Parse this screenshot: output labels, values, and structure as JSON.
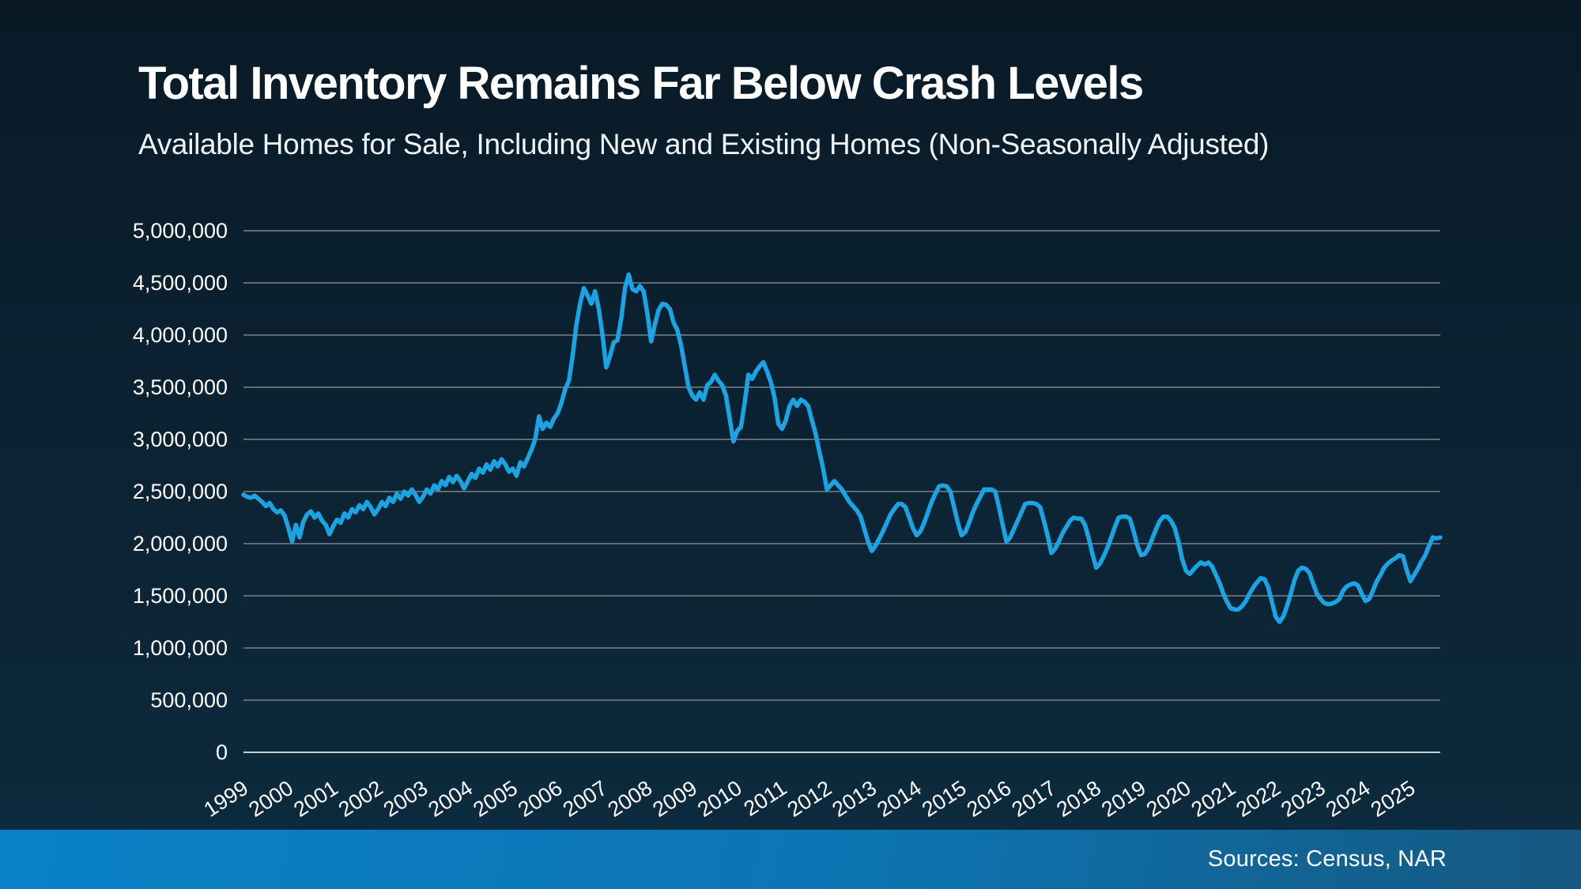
{
  "header": {
    "title": "Total Inventory Remains Far Below Crash Levels",
    "subtitle": "Available Homes for Sale, Including New and Existing Homes (Non-Seasonally Adjusted)"
  },
  "footer": {
    "source": "Sources: Census, NAR"
  },
  "colors": {
    "background_top": "#091a26",
    "background_bottom": "#0d2c40",
    "line": "#1ba4e4",
    "grid": "#5f6a73",
    "zero_axis": "#c9ced3",
    "text": "#ffffff",
    "footer_bar_left": "#0a81c6",
    "footer_bar_right": "#155880"
  },
  "chart_data": {
    "type": "line",
    "title": "Total Inventory Remains Far Below Crash Levels",
    "subtitle": "Available Homes for Sale, Including New and Existing Homes (Non-Seasonally Adjusted)",
    "xlabel": "",
    "ylabel": "",
    "unit": "homes",
    "frequency": "monthly",
    "start_year": 1999,
    "start_month": 1,
    "end_label": "2025 (September)",
    "grid": true,
    "legend_position": "none",
    "ylim": [
      0,
      5000000
    ],
    "y_ticks": [
      0,
      500000,
      1000000,
      1500000,
      2000000,
      2500000,
      3000000,
      3500000,
      4000000,
      4500000,
      5000000
    ],
    "y_tick_labels": [
      "0",
      "500,000",
      "1,000,000",
      "1,500,000",
      "2,000,000",
      "2,500,000",
      "3,000,000",
      "3,500,000",
      "4,000,000",
      "4,500,000",
      "5,000,000"
    ],
    "x_tick_years": [
      1999,
      2000,
      2001,
      2002,
      2003,
      2004,
      2005,
      2006,
      2007,
      2008,
      2009,
      2010,
      2011,
      2012,
      2013,
      2014,
      2015,
      2016,
      2017,
      2018,
      2019,
      2020,
      2021,
      2022,
      2023,
      2024,
      2025
    ],
    "series": [
      {
        "name": "Available homes for sale (new + existing)",
        "values": [
          2470000,
          2450000,
          2440000,
          2460000,
          2430000,
          2400000,
          2360000,
          2390000,
          2330000,
          2300000,
          2320000,
          2270000,
          2150000,
          2020000,
          2180000,
          2060000,
          2210000,
          2280000,
          2310000,
          2250000,
          2290000,
          2220000,
          2180000,
          2090000,
          2170000,
          2230000,
          2200000,
          2290000,
          2250000,
          2330000,
          2300000,
          2370000,
          2330000,
          2400000,
          2350000,
          2280000,
          2330000,
          2400000,
          2360000,
          2440000,
          2400000,
          2480000,
          2430000,
          2500000,
          2460000,
          2520000,
          2470000,
          2400000,
          2450000,
          2520000,
          2480000,
          2560000,
          2520000,
          2600000,
          2560000,
          2640000,
          2590000,
          2650000,
          2600000,
          2530000,
          2600000,
          2670000,
          2630000,
          2720000,
          2680000,
          2760000,
          2710000,
          2790000,
          2740000,
          2810000,
          2760000,
          2690000,
          2720000,
          2650000,
          2780000,
          2740000,
          2820000,
          2900000,
          3000000,
          3220000,
          3100000,
          3160000,
          3120000,
          3200000,
          3250000,
          3350000,
          3480000,
          3560000,
          3800000,
          4100000,
          4300000,
          4450000,
          4380000,
          4300000,
          4420000,
          4250000,
          4000000,
          3690000,
          3800000,
          3930000,
          3950000,
          4160000,
          4450000,
          4580000,
          4440000,
          4420000,
          4470000,
          4420000,
          4200000,
          3940000,
          4100000,
          4240000,
          4300000,
          4290000,
          4250000,
          4120000,
          4050000,
          3900000,
          3700000,
          3500000,
          3420000,
          3380000,
          3450000,
          3380000,
          3520000,
          3550000,
          3620000,
          3560000,
          3520000,
          3420000,
          3200000,
          2980000,
          3080000,
          3120000,
          3350000,
          3620000,
          3580000,
          3650000,
          3700000,
          3740000,
          3650000,
          3550000,
          3400000,
          3150000,
          3100000,
          3180000,
          3320000,
          3380000,
          3320000,
          3380000,
          3360000,
          3320000,
          3180000,
          3050000,
          2880000,
          2720000,
          2520000,
          2560000,
          2600000,
          2560000,
          2520000,
          2460000,
          2400000,
          2360000,
          2320000,
          2260000,
          2140000,
          2020000,
          1930000,
          1980000,
          2050000,
          2120000,
          2200000,
          2280000,
          2330000,
          2380000,
          2380000,
          2350000,
          2250000,
          2150000,
          2080000,
          2120000,
          2200000,
          2300000,
          2400000,
          2480000,
          2550000,
          2560000,
          2550000,
          2500000,
          2350000,
          2200000,
          2080000,
          2110000,
          2200000,
          2300000,
          2380000,
          2450000,
          2520000,
          2520000,
          2520000,
          2500000,
          2350000,
          2180000,
          2020000,
          2060000,
          2140000,
          2220000,
          2300000,
          2380000,
          2390000,
          2390000,
          2380000,
          2350000,
          2220000,
          2080000,
          1910000,
          1950000,
          2020000,
          2100000,
          2160000,
          2220000,
          2250000,
          2240000,
          2240000,
          2180000,
          2050000,
          1900000,
          1770000,
          1810000,
          1880000,
          1960000,
          2060000,
          2160000,
          2250000,
          2260000,
          2260000,
          2240000,
          2120000,
          1980000,
          1890000,
          1900000,
          1960000,
          2050000,
          2140000,
          2220000,
          2260000,
          2260000,
          2220000,
          2150000,
          2020000,
          1850000,
          1740000,
          1710000,
          1750000,
          1790000,
          1820000,
          1800000,
          1820000,
          1780000,
          1700000,
          1620000,
          1520000,
          1440000,
          1380000,
          1370000,
          1370000,
          1400000,
          1450000,
          1520000,
          1580000,
          1630000,
          1670000,
          1660000,
          1580000,
          1440000,
          1300000,
          1250000,
          1300000,
          1400000,
          1520000,
          1650000,
          1740000,
          1770000,
          1760000,
          1720000,
          1620000,
          1520000,
          1470000,
          1430000,
          1420000,
          1425000,
          1440000,
          1470000,
          1550000,
          1590000,
          1610000,
          1620000,
          1600000,
          1520000,
          1450000,
          1470000,
          1550000,
          1640000,
          1700000,
          1770000,
          1810000,
          1840000,
          1860000,
          1890000,
          1880000,
          1750000,
          1640000,
          1700000,
          1760000,
          1830000,
          1890000,
          1980000,
          2060000,
          2050000,
          2060000
        ]
      }
    ]
  }
}
